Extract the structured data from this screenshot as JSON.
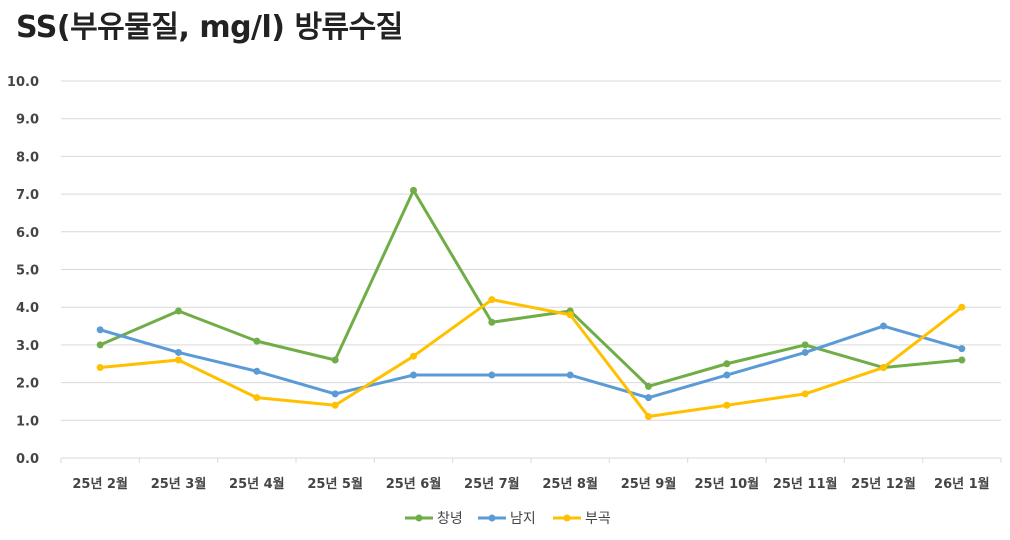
{
  "chart_data": {
    "type": "line",
    "title": "SS(부유물질, mg/l) 방류수질",
    "categories": [
      "25년 2월",
      "25년 3월",
      "25년 4월",
      "25년 5월",
      "25년 6월",
      "25년 7월",
      "25년 8월",
      "25년 9월",
      "25년 10월",
      "25년 11월",
      "25년 12월",
      "26년 1월"
    ],
    "ylim": [
      0,
      10
    ],
    "yticks": [
      "0.0",
      "1.0",
      "2.0",
      "3.0",
      "4.0",
      "5.0",
      "6.0",
      "7.0",
      "8.0",
      "9.0",
      "10.0"
    ],
    "grid": true,
    "legend": "bottom",
    "series": [
      {
        "name": "창녕",
        "color": "#70ad47",
        "values": [
          3.0,
          3.9,
          3.1,
          2.6,
          7.1,
          3.6,
          3.9,
          1.9,
          2.5,
          3.0,
          2.4,
          2.6
        ]
      },
      {
        "name": "남지",
        "color": "#5b9bd5",
        "values": [
          3.4,
          2.8,
          2.3,
          1.7,
          2.2,
          2.2,
          2.2,
          1.6,
          2.2,
          2.8,
          3.5,
          2.9
        ]
      },
      {
        "name": "부곡",
        "color": "#ffc000",
        "values": [
          2.4,
          2.6,
          1.6,
          1.4,
          2.7,
          4.2,
          3.8,
          1.1,
          1.4,
          1.7,
          2.4,
          4.0
        ]
      }
    ]
  }
}
